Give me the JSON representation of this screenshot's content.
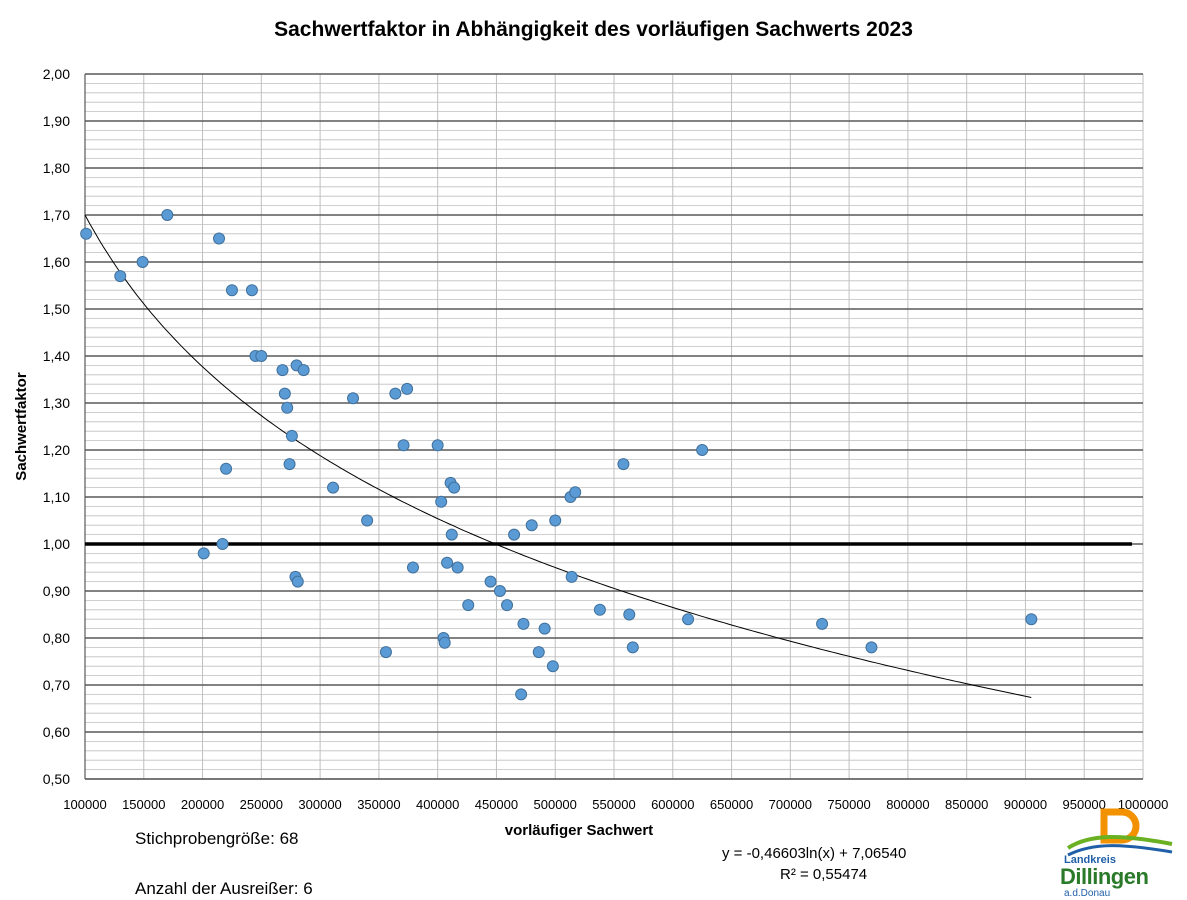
{
  "title": "Sachwertfaktor in Abhängigkeit des vorläufigen Sachwerts 2023",
  "annotations": {
    "sample_size": "Stichprobengröße: 68",
    "outliers": "Anzahl der Ausreißer: 6",
    "equation": "y = -0,46603ln(x) + 7,06540",
    "r_squared": "R² = 0,55474"
  },
  "logo": {
    "line1": "Landkreis",
    "line2": "Dillingen",
    "line3": "a.d.Donau"
  },
  "colors": {
    "points": "#5b9bd5",
    "point_border": "#41719c",
    "major_grid": "#595959",
    "minor_grid": "#bfbfbf",
    "reference_line": "#000000",
    "trendline": "#000000",
    "logo_orange": "#f39200",
    "logo_green": "#6ab023",
    "logo_blue": "#1f5fa8"
  },
  "chart_data": {
    "type": "scatter",
    "title": "Sachwertfaktor in Abhängigkeit des vorläufigen Sachwerts 2023",
    "xlabel": "vorläufiger Sachwert",
    "ylabel": "Sachwertfaktor",
    "xlim": [
      100000,
      1000000
    ],
    "ylim": [
      0.5,
      2.0
    ],
    "x_ticks": [
      "100000",
      "150000",
      "200000",
      "250000",
      "300000",
      "350000",
      "400000",
      "450000",
      "500000",
      "550000",
      "600000",
      "650000",
      "700000",
      "750000",
      "800000",
      "850000",
      "900000",
      "950000",
      "1000000"
    ],
    "y_ticks": [
      "0,50",
      "0,60",
      "0,70",
      "0,80",
      "0,90",
      "1,00",
      "1,10",
      "1,20",
      "1,30",
      "1,40",
      "1,50",
      "1,60",
      "1,70",
      "1,80",
      "1,90",
      "2,00"
    ],
    "grid": "major and minor horizontal, major vertical",
    "reference_line_y": 1.0,
    "trendline": {
      "type": "logarithmic",
      "a": -0.46603,
      "b": 7.0654,
      "x_range": [
        100000,
        905000
      ]
    },
    "points": [
      {
        "x": 101000,
        "y": 1.66
      },
      {
        "x": 130000,
        "y": 1.57
      },
      {
        "x": 149000,
        "y": 1.6
      },
      {
        "x": 170000,
        "y": 1.7
      },
      {
        "x": 201000,
        "y": 0.98
      },
      {
        "x": 214000,
        "y": 1.65
      },
      {
        "x": 217000,
        "y": 1.0
      },
      {
        "x": 220000,
        "y": 1.16
      },
      {
        "x": 225000,
        "y": 1.54
      },
      {
        "x": 242000,
        "y": 1.54
      },
      {
        "x": 245000,
        "y": 1.4
      },
      {
        "x": 250000,
        "y": 1.4
      },
      {
        "x": 268000,
        "y": 1.37
      },
      {
        "x": 270000,
        "y": 1.32
      },
      {
        "x": 272000,
        "y": 1.29
      },
      {
        "x": 274000,
        "y": 1.17
      },
      {
        "x": 276000,
        "y": 1.23
      },
      {
        "x": 279000,
        "y": 0.93
      },
      {
        "x": 280000,
        "y": 1.38
      },
      {
        "x": 281000,
        "y": 0.92
      },
      {
        "x": 286000,
        "y": 1.37
      },
      {
        "x": 311000,
        "y": 1.12
      },
      {
        "x": 328000,
        "y": 1.31
      },
      {
        "x": 340000,
        "y": 1.05
      },
      {
        "x": 356000,
        "y": 0.77
      },
      {
        "x": 364000,
        "y": 1.32
      },
      {
        "x": 371000,
        "y": 1.21
      },
      {
        "x": 374000,
        "y": 1.33
      },
      {
        "x": 379000,
        "y": 0.95
      },
      {
        "x": 400000,
        "y": 1.21
      },
      {
        "x": 403000,
        "y": 1.09
      },
      {
        "x": 405000,
        "y": 0.8
      },
      {
        "x": 406000,
        "y": 0.79
      },
      {
        "x": 408000,
        "y": 0.96
      },
      {
        "x": 411000,
        "y": 1.13
      },
      {
        "x": 412000,
        "y": 1.02
      },
      {
        "x": 414000,
        "y": 1.12
      },
      {
        "x": 417000,
        "y": 0.95
      },
      {
        "x": 426000,
        "y": 0.87
      },
      {
        "x": 445000,
        "y": 0.92
      },
      {
        "x": 453000,
        "y": 0.9
      },
      {
        "x": 459000,
        "y": 0.87
      },
      {
        "x": 465000,
        "y": 1.02
      },
      {
        "x": 471000,
        "y": 0.68
      },
      {
        "x": 473000,
        "y": 0.83
      },
      {
        "x": 480000,
        "y": 1.04
      },
      {
        "x": 486000,
        "y": 0.77
      },
      {
        "x": 491000,
        "y": 0.82
      },
      {
        "x": 498000,
        "y": 0.74
      },
      {
        "x": 500000,
        "y": 1.05
      },
      {
        "x": 513000,
        "y": 1.1
      },
      {
        "x": 514000,
        "y": 0.93
      },
      {
        "x": 517000,
        "y": 1.11
      },
      {
        "x": 538000,
        "y": 0.86
      },
      {
        "x": 558000,
        "y": 1.17
      },
      {
        "x": 563000,
        "y": 0.85
      },
      {
        "x": 566000,
        "y": 0.78
      },
      {
        "x": 613000,
        "y": 0.84
      },
      {
        "x": 625000,
        "y": 1.2
      },
      {
        "x": 727000,
        "y": 0.83
      },
      {
        "x": 769000,
        "y": 0.78
      },
      {
        "x": 905000,
        "y": 0.84
      }
    ]
  }
}
